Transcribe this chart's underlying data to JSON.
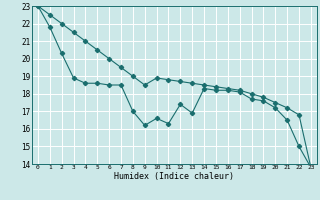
{
  "xlabel": "Humidex (Indice chaleur)",
  "xlim": [
    -0.5,
    23.5
  ],
  "ylim": [
    14,
    23
  ],
  "xticks": [
    0,
    1,
    2,
    3,
    4,
    5,
    6,
    7,
    8,
    9,
    10,
    11,
    12,
    13,
    14,
    15,
    16,
    17,
    18,
    19,
    20,
    21,
    22,
    23
  ],
  "yticks": [
    14,
    15,
    16,
    17,
    18,
    19,
    20,
    21,
    22,
    23
  ],
  "bg_color": "#cce8e8",
  "grid_color": "#ffffff",
  "line_color": "#1a6e6e",
  "line1_x": [
    0,
    1,
    2,
    3,
    4,
    5,
    6,
    7,
    8,
    9,
    10,
    11,
    12,
    13,
    14,
    15,
    16,
    17,
    18,
    19,
    20,
    21,
    22,
    23
  ],
  "line1_y": [
    23,
    21.8,
    20.3,
    18.9,
    18.6,
    18.6,
    18.5,
    18.5,
    17.0,
    16.2,
    16.6,
    16.3,
    17.4,
    16.9,
    18.3,
    18.2,
    18.2,
    18.1,
    17.7,
    17.6,
    17.2,
    16.5,
    15.0,
    13.8
  ],
  "line2_x": [
    0,
    1,
    2,
    3,
    4,
    5,
    6,
    7,
    8,
    9,
    10,
    11,
    12,
    13,
    14,
    15,
    16,
    17,
    18,
    19,
    20,
    21,
    22,
    23
  ],
  "line2_y": [
    23,
    22.5,
    22.0,
    21.5,
    21.0,
    20.5,
    20.0,
    19.5,
    19.0,
    18.5,
    18.9,
    18.8,
    18.7,
    18.6,
    18.5,
    18.4,
    18.3,
    18.2,
    18.0,
    17.8,
    17.5,
    17.2,
    16.8,
    13.8
  ]
}
